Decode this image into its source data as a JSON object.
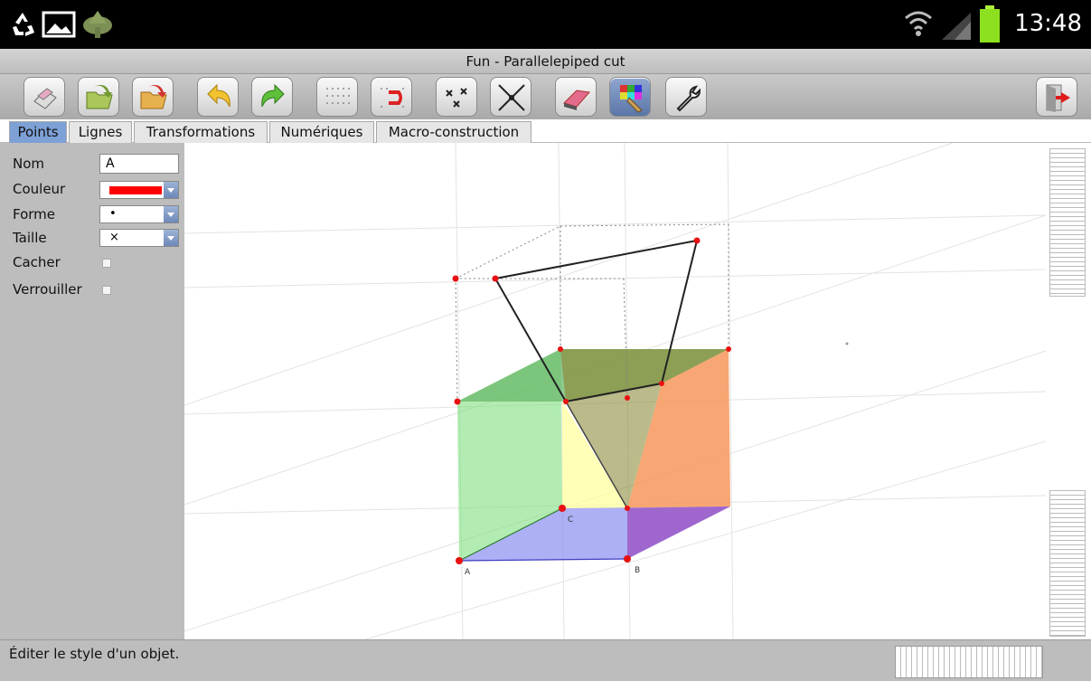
{
  "statusbar": {
    "time": "13:48",
    "icons": [
      "recycle-icon",
      "gallery-icon",
      "android-icon",
      "wifi-icon",
      "signal-icon",
      "battery-icon"
    ]
  },
  "window": {
    "title": "Fun - Parallelepiped cut"
  },
  "toolbar": {
    "buttons": [
      "new-icon",
      "open-icon",
      "save-icon",
      "undo-icon",
      "redo-icon",
      "grid-icon",
      "magnet-grid-icon",
      "points-icon",
      "lines-icon",
      "eraser-icon",
      "palette-icon",
      "wrench-icon",
      "exit-icon"
    ]
  },
  "tabs": [
    {
      "label": "Points",
      "active": true
    },
    {
      "label": "Lignes"
    },
    {
      "label": "Transformations"
    },
    {
      "label": "Numériques"
    },
    {
      "label": "Macro-construction"
    }
  ],
  "properties": {
    "nom_label": "Nom",
    "nom_value": "A",
    "couleur_label": "Couleur",
    "couleur_value": "#ff0000",
    "forme_label": "Forme",
    "forme_value": "•",
    "taille_label": "Taille",
    "taille_value": "×",
    "cacher_label": "Cacher",
    "verrouiller_label": "Verrouiller"
  },
  "canvas": {
    "points": {
      "A": "A",
      "B": "B",
      "C": "C"
    },
    "colors": {
      "green": "#7ee07e",
      "yellow": "#ffff99",
      "orange": "#f7965a",
      "blue": "#8a8ef0",
      "purple": "#9b55c4",
      "olive": "#8c8c3c",
      "point": "#e81010"
    }
  },
  "status": {
    "message": "Éditer le style d'un objet."
  }
}
